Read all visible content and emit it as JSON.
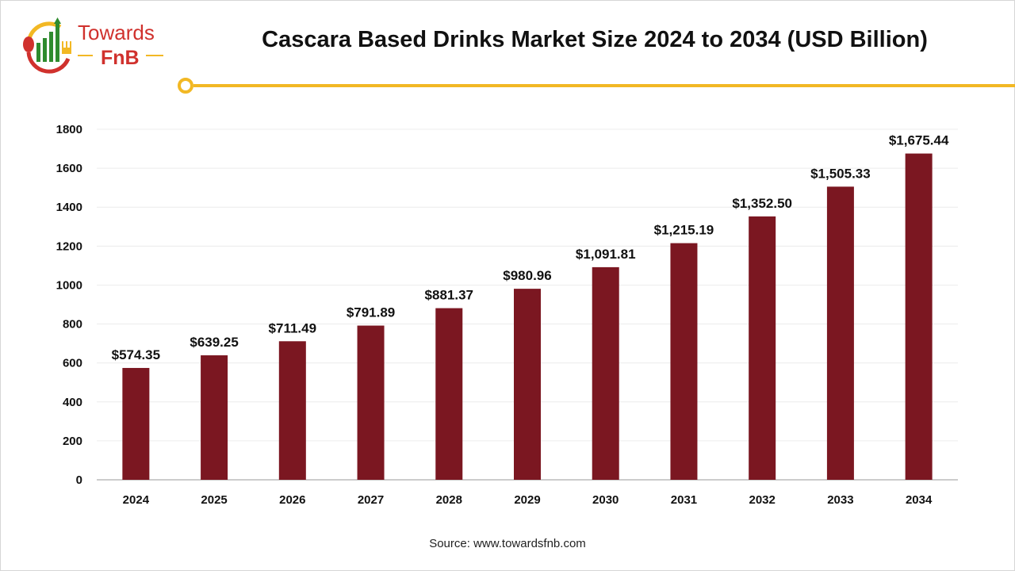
{
  "logo": {
    "line1": "Towards",
    "line2": "FnB"
  },
  "title": "Cascara Based Drinks Market Size 2024 to 2034 (USD Billion)",
  "source": "Source: www.towardsfnb.com",
  "colors": {
    "bar": "#7b1721",
    "accent": "#f2b824",
    "logo_red": "#d0312d",
    "logo_green": "#2e8b2e"
  },
  "chart_data": {
    "type": "bar",
    "title": "Cascara Based Drinks Market Size 2024 to 2034 (USD Billion)",
    "categories": [
      "2024",
      "2025",
      "2026",
      "2027",
      "2028",
      "2029",
      "2030",
      "2031",
      "2032",
      "2033",
      "2034"
    ],
    "values": [
      574.35,
      639.25,
      711.49,
      791.89,
      881.37,
      980.96,
      1091.81,
      1215.19,
      1352.5,
      1505.33,
      1675.44
    ],
    "data_labels": [
      "$574.35",
      "$639.25",
      "$711.49",
      "$791.89",
      "$881.37",
      "$980.96",
      "$1,091.81",
      "$1,215.19",
      "$1,352.50",
      "$1,505.33",
      "$1,675.44"
    ],
    "yticks": [
      0,
      200,
      400,
      600,
      800,
      1000,
      1200,
      1400,
      1600,
      1800
    ],
    "ylim": [
      0,
      1800
    ],
    "grid": true,
    "xlabel": "",
    "ylabel": ""
  }
}
